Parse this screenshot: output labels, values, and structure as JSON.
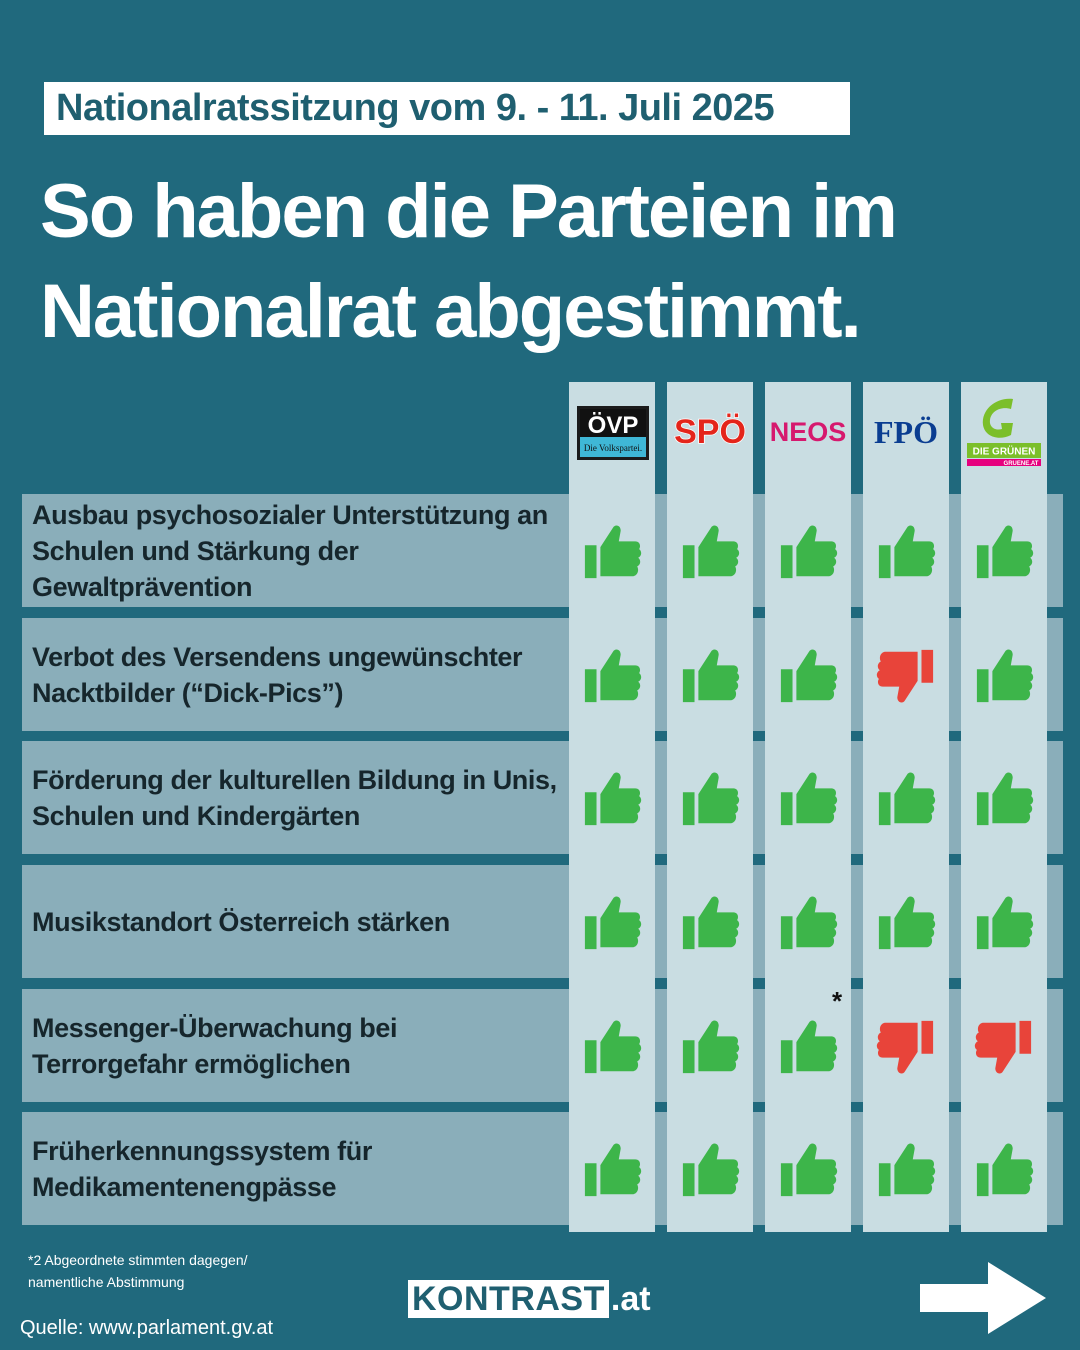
{
  "header": {
    "badge": "Nationalratssitzung vom 9. - 11. Juli 2025",
    "headline_line1": "So haben die Parteien im",
    "headline_line2": "Nationalrat abgestimmt."
  },
  "parties": [
    {
      "id": "oevp",
      "logo_text": "ÖVP",
      "logo_sub": "Die Volkspartei."
    },
    {
      "id": "spoe",
      "logo_text": "SPÖ"
    },
    {
      "id": "neos",
      "logo_text": "NEOS"
    },
    {
      "id": "fpoe",
      "logo_text": "FPÖ"
    },
    {
      "id": "gruene",
      "logo_text": "DIE GRÜNEN",
      "logo_sub": "GRUENE.AT"
    }
  ],
  "rows": [
    {
      "label": "Ausbau psychosozialer Unterstützung an Schulen und Stärkung der Gewaltprävention",
      "votes": [
        "yes",
        "yes",
        "yes",
        "yes",
        "yes"
      ]
    },
    {
      "label": "Verbot des Versendens ungewünschter Nacktbilder (“Dick-Pics”)",
      "votes": [
        "yes",
        "yes",
        "yes",
        "no",
        "yes"
      ]
    },
    {
      "label": "Förderung der kulturellen Bildung in Unis, Schulen und Kindergärten",
      "votes": [
        "yes",
        "yes",
        "yes",
        "yes",
        "yes"
      ]
    },
    {
      "label": "Musikstandort Österreich stärken",
      "votes": [
        "yes",
        "yes",
        "yes",
        "yes",
        "yes"
      ]
    },
    {
      "label": "Messenger-Überwachung bei Terrorgefahr ermöglichen",
      "votes": [
        "yes",
        "yes",
        "yes",
        "no",
        "no"
      ]
    },
    {
      "label": "Früherkennungssystem für Medikamentenengpässe",
      "votes": [
        "yes",
        "yes",
        "yes",
        "yes",
        "yes"
      ]
    }
  ],
  "asterisk": "*",
  "footnote_line1": "*2 Abgeordnete stimmten dagegen/",
  "footnote_line2": "namentliche Abstimmung",
  "source": "Quelle: www.parlament.gv.at",
  "brand": {
    "name": "KONTRAST",
    "tld": ".at"
  },
  "colors": {
    "background": "#20697d",
    "yes": "#3db54a",
    "no": "#e8443a"
  }
}
